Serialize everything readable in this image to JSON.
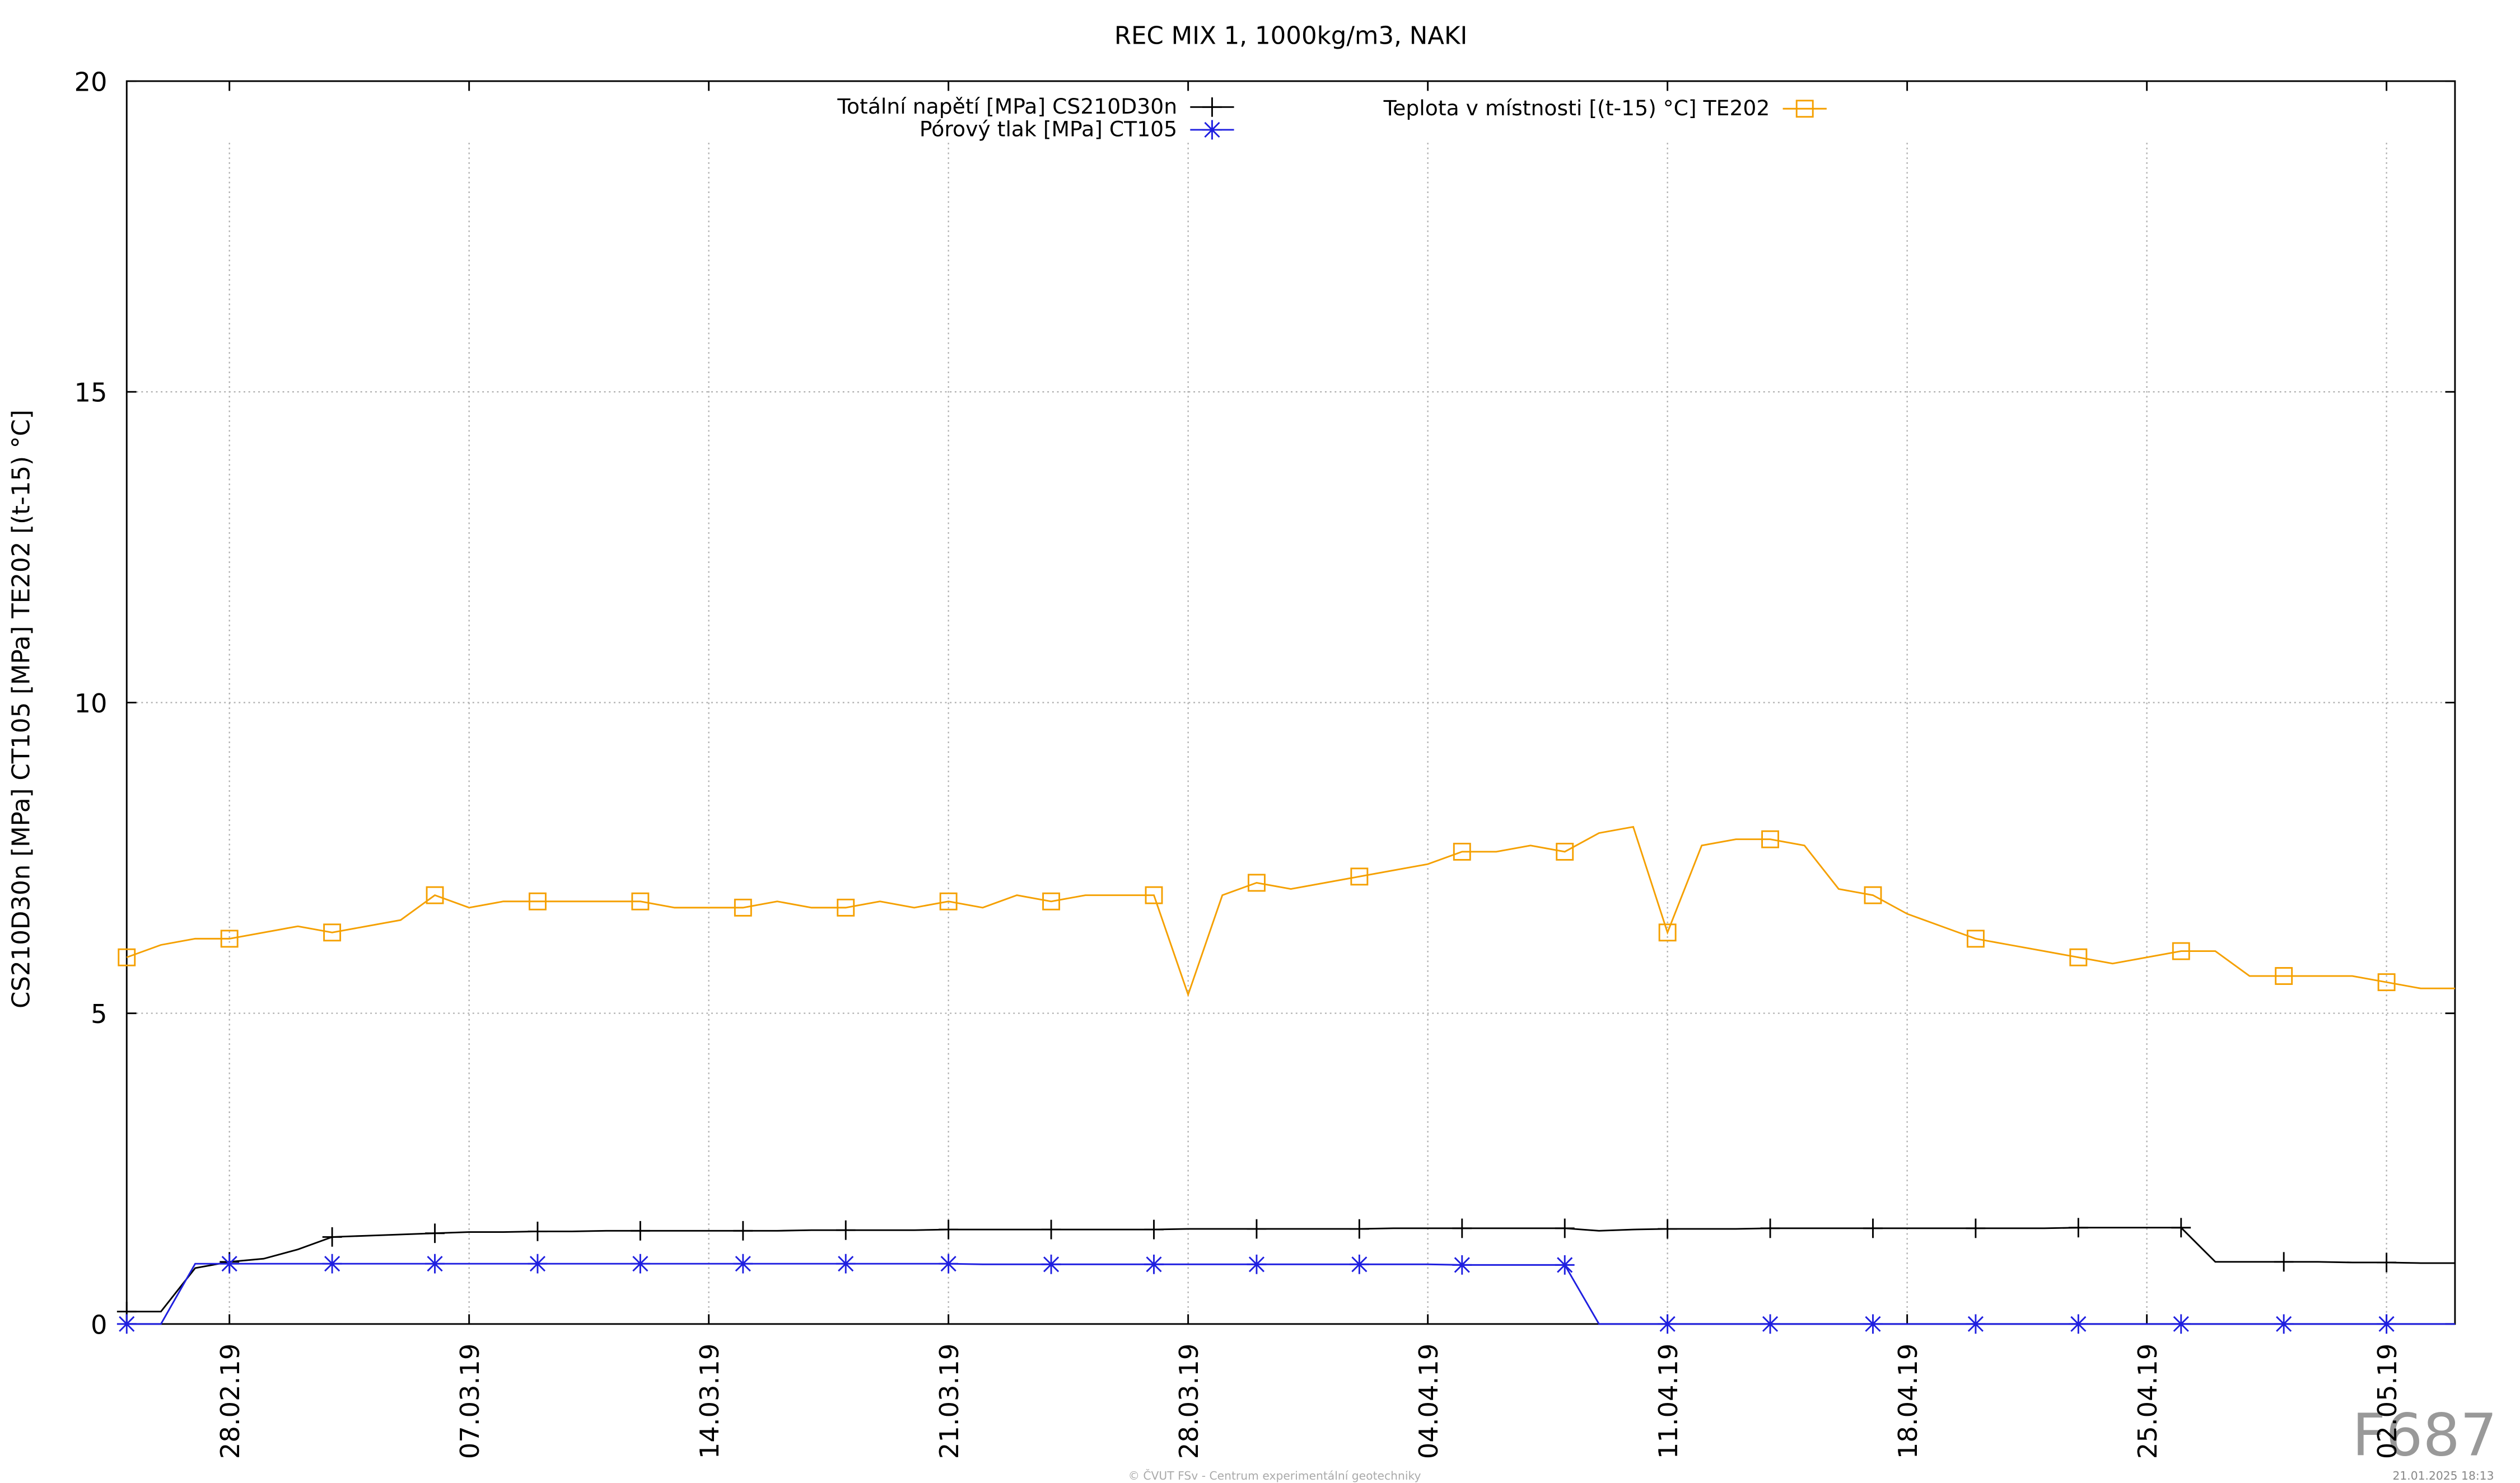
{
  "chart_data": {
    "type": "line",
    "title": "REC MIX 1, 1000kg/m3, NAKI",
    "y_label": "CS210D30n [MPa] CT105 [MPa] TE202 [(t-15) °C]",
    "watermark": "F687",
    "footer": "© ČVUT FSv - Centrum experimentální geotechniky",
    "timestamp": "21.01.2025 18:13",
    "grid": true,
    "legend": "top",
    "x": [
      "2019-02-25",
      "2019-02-26",
      "2019-02-27",
      "2019-02-28",
      "2019-03-01",
      "2019-03-02",
      "2019-03-03",
      "2019-03-04",
      "2019-03-05",
      "2019-03-06",
      "2019-03-07",
      "2019-03-08",
      "2019-03-09",
      "2019-03-10",
      "2019-03-11",
      "2019-03-12",
      "2019-03-13",
      "2019-03-14",
      "2019-03-15",
      "2019-03-16",
      "2019-03-17",
      "2019-03-18",
      "2019-03-19",
      "2019-03-20",
      "2019-03-21",
      "2019-03-22",
      "2019-03-23",
      "2019-03-24",
      "2019-03-25",
      "2019-03-26",
      "2019-03-27",
      "2019-03-28",
      "2019-03-29",
      "2019-03-30",
      "2019-03-31",
      "2019-04-01",
      "2019-04-02",
      "2019-04-03",
      "2019-04-04",
      "2019-04-05",
      "2019-04-06",
      "2019-04-07",
      "2019-04-08",
      "2019-04-09",
      "2019-04-10",
      "2019-04-11",
      "2019-04-12",
      "2019-04-13",
      "2019-04-14",
      "2019-04-15",
      "2019-04-16",
      "2019-04-17",
      "2019-04-18",
      "2019-04-19",
      "2019-04-20",
      "2019-04-21",
      "2019-04-22",
      "2019-04-23",
      "2019-04-24",
      "2019-04-25",
      "2019-04-26",
      "2019-04-27",
      "2019-04-28",
      "2019-04-29",
      "2019-04-30",
      "2019-05-01",
      "2019-05-02",
      "2019-05-03",
      "2019-05-04"
    ],
    "series": [
      {
        "name": "Totální napětí [MPa] CS210D30n",
        "color": "#000000",
        "marker": "plus",
        "values": [
          0.2,
          0.2,
          0.9,
          1.0,
          1.05,
          1.2,
          1.4,
          1.42,
          1.44,
          1.46,
          1.48,
          1.48,
          1.49,
          1.49,
          1.5,
          1.5,
          1.5,
          1.5,
          1.5,
          1.5,
          1.51,
          1.51,
          1.51,
          1.51,
          1.52,
          1.52,
          1.52,
          1.52,
          1.52,
          1.52,
          1.52,
          1.53,
          1.53,
          1.53,
          1.53,
          1.53,
          1.53,
          1.54,
          1.54,
          1.54,
          1.54,
          1.54,
          1.54,
          1.5,
          1.52,
          1.53,
          1.53,
          1.53,
          1.54,
          1.54,
          1.54,
          1.54,
          1.54,
          1.54,
          1.54,
          1.54,
          1.54,
          1.55,
          1.55,
          1.55,
          1.55,
          1.0,
          1.0,
          1.0,
          1.0,
          0.99,
          0.99,
          0.98,
          0.98
        ]
      },
      {
        "name": "Pórový tlak [MPa] CT105",
        "color": "#1f1fe0",
        "marker": "star",
        "values": [
          0,
          0,
          0.97,
          0.97,
          0.97,
          0.97,
          0.97,
          0.97,
          0.97,
          0.97,
          0.97,
          0.97,
          0.97,
          0.97,
          0.97,
          0.97,
          0.97,
          0.97,
          0.97,
          0.97,
          0.97,
          0.97,
          0.97,
          0.97,
          0.97,
          0.96,
          0.96,
          0.96,
          0.96,
          0.96,
          0.96,
          0.96,
          0.96,
          0.96,
          0.96,
          0.96,
          0.96,
          0.96,
          0.96,
          0.95,
          0.95,
          0.95,
          0.95,
          0,
          0,
          0,
          0,
          0,
          0,
          0,
          0,
          0,
          0,
          0,
          0,
          0,
          0,
          0,
          0,
          0,
          0,
          0,
          0,
          0,
          0,
          0,
          0,
          0,
          0
        ]
      },
      {
        "name": "Teplota v místnosti [(t-15) °C] TE202",
        "color": "#f5a000",
        "marker": "square",
        "values": [
          5.9,
          6.1,
          6.2,
          6.2,
          6.3,
          6.4,
          6.3,
          6.4,
          6.5,
          6.9,
          6.7,
          6.8,
          6.8,
          6.8,
          6.8,
          6.8,
          6.7,
          6.7,
          6.7,
          6.8,
          6.7,
          6.7,
          6.8,
          6.7,
          6.8,
          6.7,
          6.9,
          6.8,
          6.9,
          6.9,
          6.9,
          5.3,
          6.9,
          7.1,
          7.0,
          7.1,
          7.2,
          7.3,
          7.4,
          7.6,
          7.6,
          7.7,
          7.6,
          7.9,
          8.0,
          6.3,
          7.7,
          7.8,
          7.8,
          7.7,
          7.0,
          6.9,
          6.6,
          6.4,
          6.2,
          6.1,
          6.0,
          5.9,
          5.8,
          5.9,
          6.0,
          6.0,
          5.6,
          5.6,
          5.6,
          5.6,
          5.5,
          5.4,
          5.4
        ]
      }
    ],
    "xlim": [
      "2019-02-25",
      "2019-05-04"
    ],
    "xticks": [
      {
        "value": "2019-02-28",
        "label": "28.02.19"
      },
      {
        "value": "2019-03-07",
        "label": "07.03.19"
      },
      {
        "value": "2019-03-14",
        "label": "14.03.19"
      },
      {
        "value": "2019-03-21",
        "label": "21.03.19"
      },
      {
        "value": "2019-03-28",
        "label": "28.03.19"
      },
      {
        "value": "2019-04-04",
        "label": "04.04.19"
      },
      {
        "value": "2019-04-11",
        "label": "11.04.19"
      },
      {
        "value": "2019-04-18",
        "label": "18.04.19"
      },
      {
        "value": "2019-04-25",
        "label": "25.04.19"
      },
      {
        "value": "2019-05-02",
        "label": "02.05.19"
      }
    ],
    "ylim": [
      0,
      20
    ],
    "yticks": [
      0,
      5,
      10,
      15,
      20
    ]
  }
}
